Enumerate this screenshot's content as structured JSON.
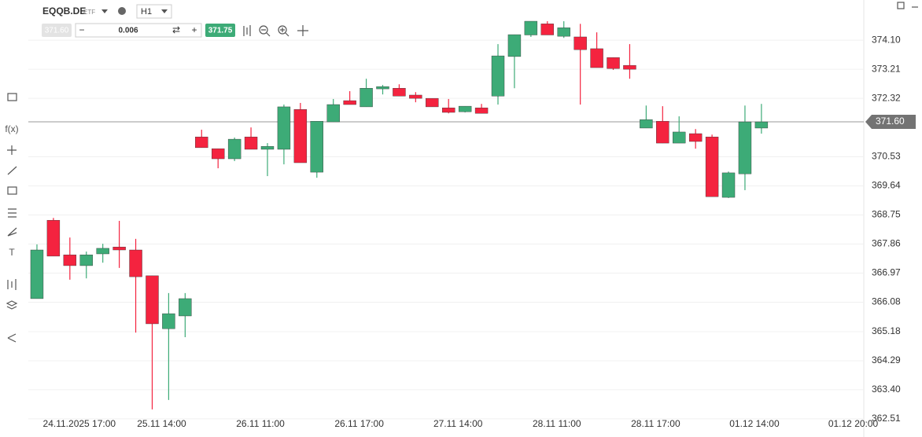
{
  "toolbar": {
    "symbol": "EQQB.DE",
    "asset_class": "ETF",
    "timeframe": "H1",
    "bid": "371.60",
    "quantity": "0.006",
    "ask": "371.75",
    "minus": "−",
    "plus": "+",
    "swap": "⇄",
    "function_tool": "f(x)",
    "text_tool": "T"
  },
  "chart_data": {
    "type": "candlestick",
    "categories": [
      null,
      null,
      "24.11.2025 17:00",
      null,
      null,
      null,
      null,
      "25.11 14:00",
      null,
      null,
      null,
      null,
      null,
      "26.11 11:00",
      null,
      null,
      null,
      null,
      null,
      "26.11 17:00",
      null,
      null,
      null,
      null,
      null,
      "27.11 14:00",
      null,
      null,
      null,
      null,
      null,
      "28.11 11:00",
      null,
      null,
      null,
      null,
      null,
      "28.11 17:00",
      null,
      null,
      null,
      null,
      null,
      "01.12 14:00",
      null,
      null,
      null,
      null,
      null,
      "01.12 20:00"
    ],
    "open": [
      366.19,
      368.59,
      367.53,
      367.2,
      367.56,
      367.77,
      367.68,
      366.89,
      365.27,
      365.66,
      371.14,
      370.78,
      370.47,
      371.14,
      370.76,
      370.76,
      371.98,
      370.06,
      371.6,
      372.25,
      372.06,
      372.61,
      372.63,
      372.42,
      372.32,
      372.03,
      371.91,
      372.03,
      372.39,
      373.6,
      374.26,
      374.6,
      374.22,
      374.2,
      373.84,
      373.57,
      373.33,
      371.41,
      371.62,
      370.95,
      371.24,
      371.14,
      369.29,
      370.01,
      371.41,
      null,
      null,
      null,
      null,
      null
    ],
    "high": [
      367.85,
      368.66,
      368.06,
      367.63,
      367.87,
      368.57,
      368.02,
      366.89,
      366.36,
      366.36,
      371.36,
      370.78,
      371.12,
      371.43,
      370.95,
      372.13,
      372.18,
      371.62,
      372.3,
      372.54,
      372.92,
      372.73,
      372.75,
      372.51,
      372.32,
      372.3,
      372.08,
      372.15,
      373.98,
      374.27,
      374.68,
      374.68,
      374.68,
      374.6,
      374.34,
      373.57,
      373.98,
      372.1,
      372.08,
      371.77,
      371.38,
      371.21,
      370.08,
      372.1,
      372.15,
      null,
      null,
      null,
      null,
      null
    ],
    "low": [
      366.19,
      367.49,
      366.77,
      366.81,
      367.29,
      367.13,
      365.15,
      362.8,
      363.09,
      365.01,
      370.81,
      370.18,
      370.4,
      370.76,
      369.94,
      370.3,
      370.35,
      369.89,
      371.6,
      372.13,
      372.06,
      372.44,
      372.39,
      372.2,
      372.06,
      371.86,
      371.89,
      371.86,
      372.13,
      372.63,
      374.2,
      374.26,
      374.17,
      372.13,
      373.26,
      373.19,
      372.92,
      371.41,
      370.95,
      370.95,
      370.78,
      369.31,
      369.27,
      369.51,
      371.24,
      null,
      null,
      null,
      null,
      null
    ],
    "close": [
      367.68,
      367.49,
      367.2,
      367.53,
      367.73,
      367.68,
      366.86,
      365.42,
      365.73,
      366.19,
      370.81,
      370.47,
      371.07,
      370.76,
      370.85,
      372.06,
      370.35,
      371.62,
      372.13,
      372.13,
      372.63,
      372.68,
      372.39,
      372.32,
      372.06,
      371.89,
      372.08,
      371.86,
      373.62,
      374.27,
      374.68,
      374.26,
      374.48,
      373.81,
      373.26,
      373.23,
      373.21,
      371.67,
      370.95,
      371.29,
      371.0,
      369.31,
      370.04,
      371.6,
      371.6,
      null,
      null,
      null,
      null,
      null
    ],
    "up_color": "#3dab77",
    "down_color": "#f4233f",
    "ylim": [
      362.34,
      375.33
    ],
    "yticks": [
      {
        "value": 374.1,
        "label": "374.10"
      },
      373.21,
      372.32,
      370.53,
      369.64,
      368.75,
      367.86,
      366.97,
      366.08,
      365.18,
      364.29,
      {
        "value": 363.4,
        "label": "363.40"
      },
      362.51
    ],
    "grid": true,
    "last_price": {
      "value": 371.6,
      "label": "371.60"
    }
  }
}
